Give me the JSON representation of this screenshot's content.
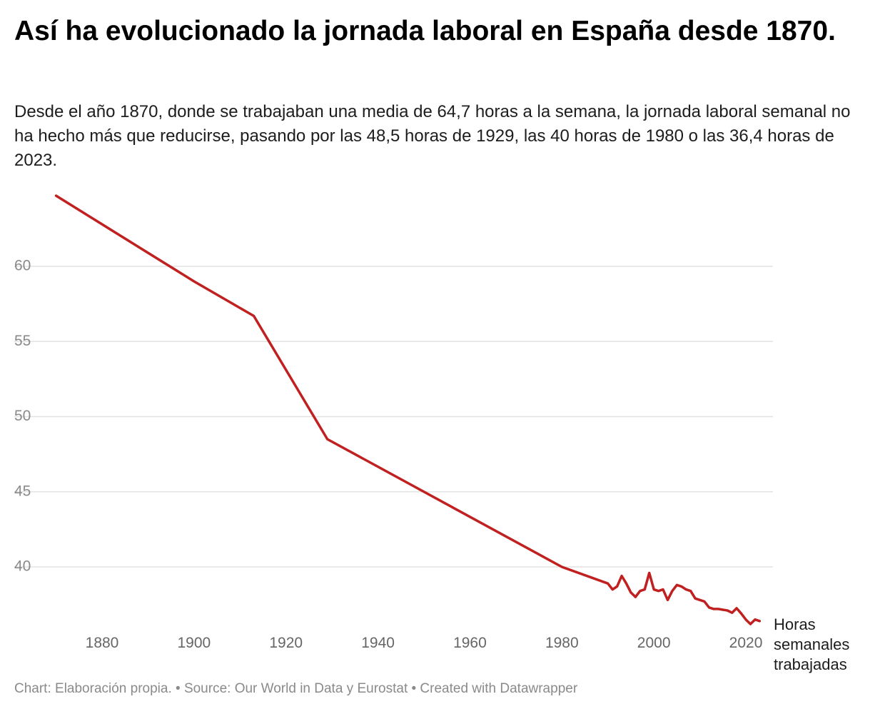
{
  "title": "Así ha evolucionado la jornada laboral en España desde 1870.",
  "subtitle": "Desde el año 1870, donde se trabajaban una media de 64,7 horas a la semana, la jornada laboral semanal no ha hecho más que reducirse, pasando por las 48,5 horas de 1929, las 40 horas de 1980 o las 36,4 horas de 2023.",
  "footer": "Chart: Elaboración propia. • Source: Our World in Data y Eurostat • Created with Datawrapper",
  "chart_data": {
    "type": "line",
    "title": "Así ha evolucionado la jornada laboral en España desde 1870.",
    "xlabel": "",
    "ylabel": "",
    "xlim": [
      1870,
      2023
    ],
    "ylim": [
      36,
      65
    ],
    "x_ticks": [
      1880,
      1900,
      1920,
      1940,
      1960,
      1980,
      2000,
      2020
    ],
    "y_ticks": [
      40,
      45,
      50,
      55,
      60
    ],
    "grid": true,
    "line_color": "#c0201f",
    "series": [
      {
        "name": "Horas semanales trabajadas",
        "label_lines": [
          "Horas",
          "semanales",
          "trabajadas"
        ],
        "x": [
          1870,
          1880,
          1890,
          1900,
          1913,
          1929,
          1980,
          1990,
          1991,
          1992,
          1993,
          1994,
          1995,
          1996,
          1997,
          1998,
          1999,
          2000,
          2001,
          2002,
          2003,
          2004,
          2005,
          2006,
          2007,
          2008,
          2009,
          2010,
          2011,
          2012,
          2013,
          2014,
          2015,
          2016,
          2017,
          2018,
          2019,
          2020,
          2021,
          2022,
          2023
        ],
        "y": [
          64.7,
          62.8,
          60.9,
          59.0,
          56.7,
          48.5,
          40.0,
          38.9,
          38.5,
          38.7,
          39.4,
          38.9,
          38.3,
          38.0,
          38.4,
          38.5,
          39.6,
          38.5,
          38.4,
          38.5,
          37.8,
          38.4,
          38.8,
          38.7,
          38.5,
          38.4,
          37.9,
          37.8,
          37.7,
          37.3,
          37.2,
          37.2,
          37.15,
          37.1,
          36.95,
          37.25,
          36.9,
          36.5,
          36.2,
          36.5,
          36.4
        ]
      }
    ]
  }
}
